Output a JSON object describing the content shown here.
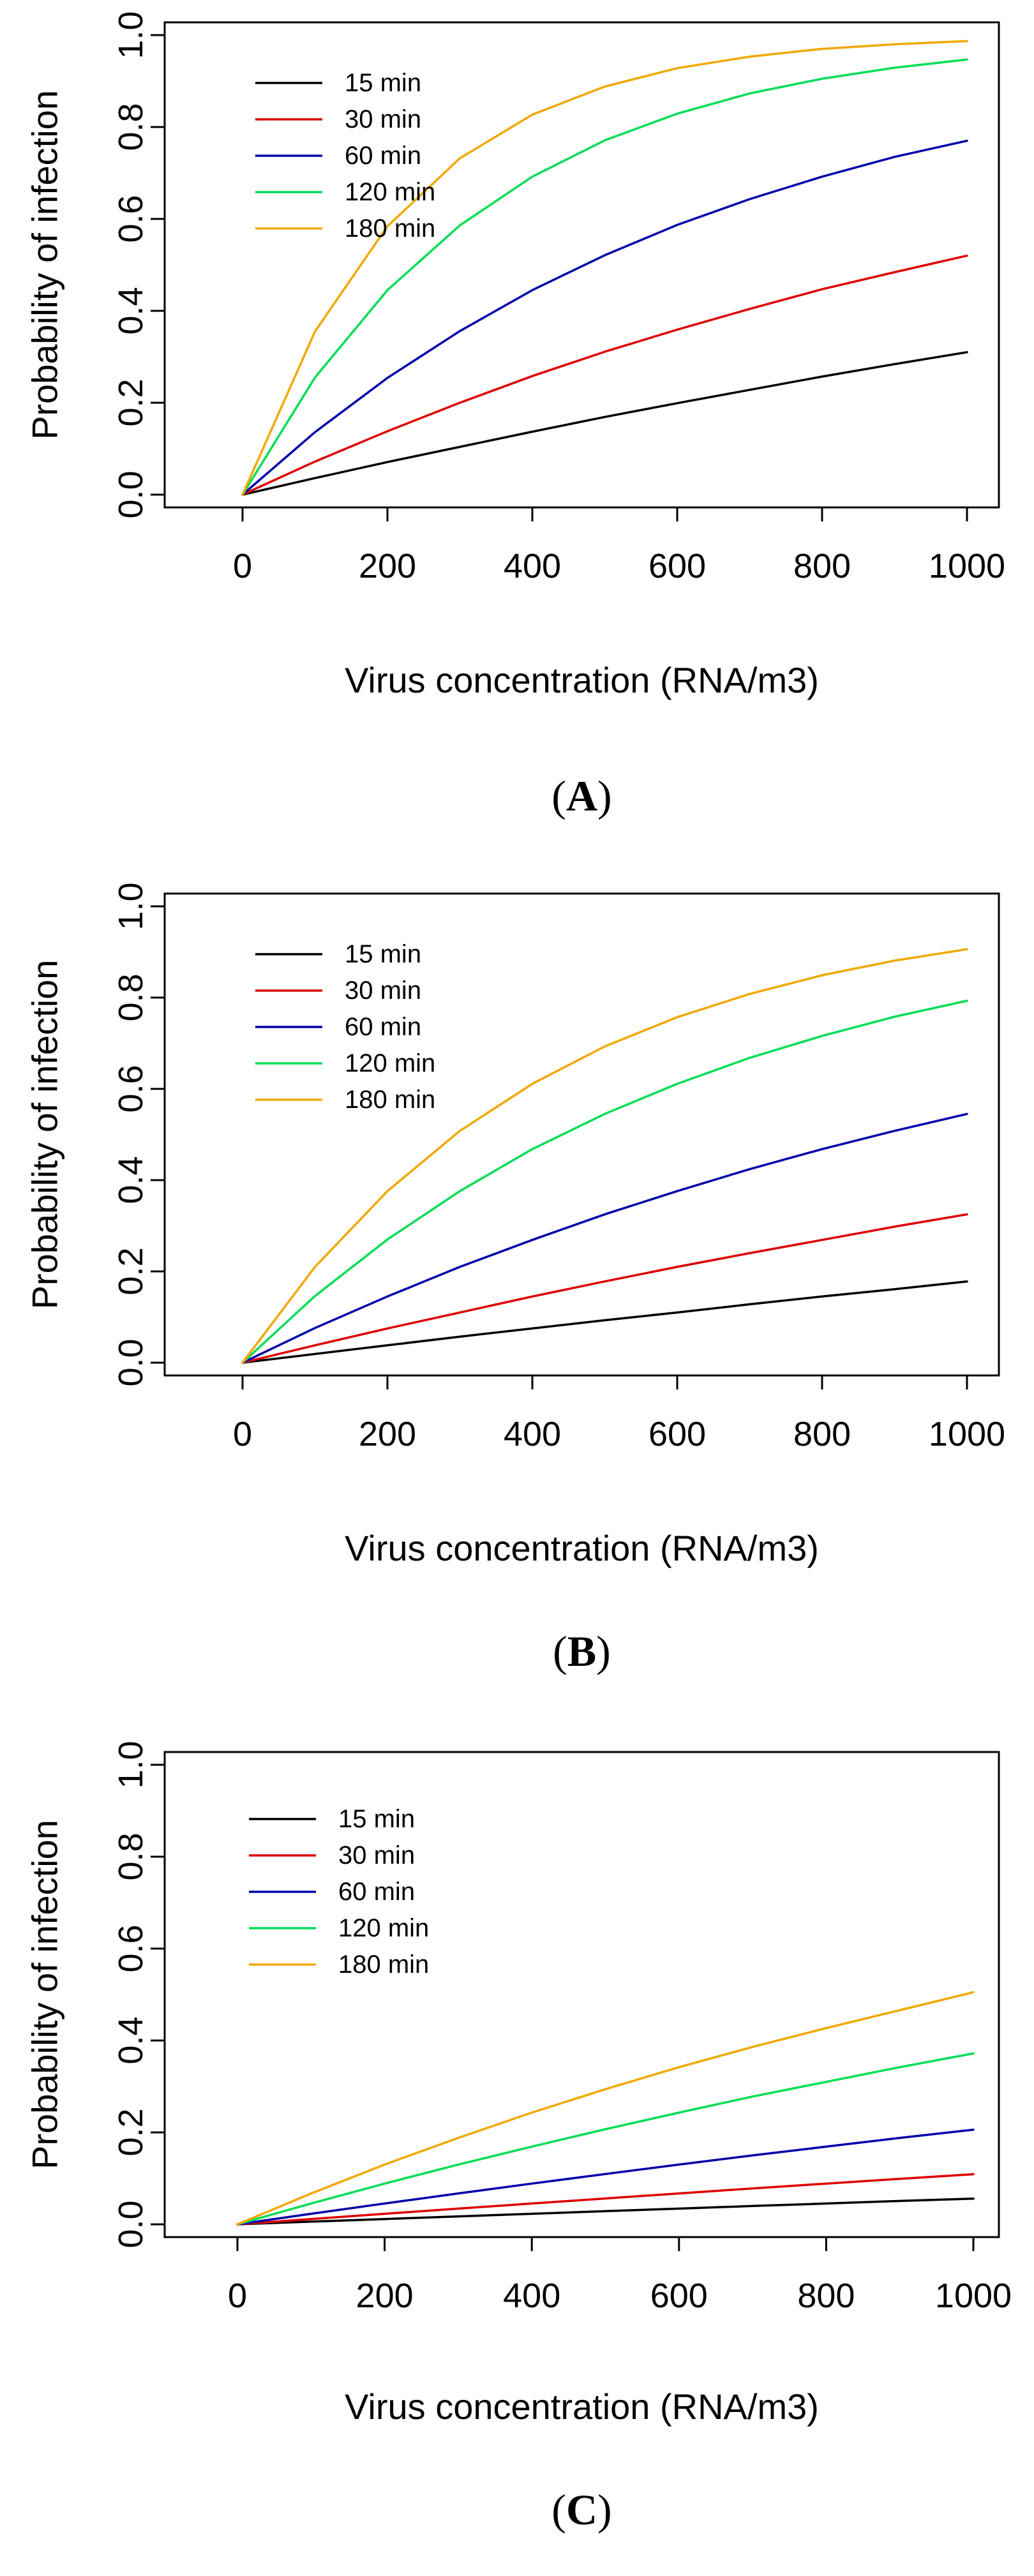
{
  "colors": {
    "15 min": "#000000",
    "30 min": "#dd0000",
    "60 min": "#0000aa",
    "120 min": "#00dd55",
    "180 min": "#f0a800"
  },
  "chart_data": [
    {
      "type": "line",
      "panel_label": "(A)",
      "panel_letter": "A",
      "xlabel": "Virus concentration (RNA/m3)",
      "ylabel": "Probability of infection",
      "xlim": [
        0,
        1000
      ],
      "ylim": [
        0,
        1
      ],
      "x_ticks": [
        0,
        200,
        400,
        600,
        800,
        1000
      ],
      "y_ticks": [
        0.0,
        0.2,
        0.4,
        0.6,
        0.8,
        1.0
      ],
      "y_tick_labels": [
        "0.0",
        "0.2",
        "0.4",
        "0.6",
        "0.8",
        "1.0"
      ],
      "legend_position": "top-left",
      "x": [
        0,
        100,
        200,
        300,
        400,
        500,
        600,
        700,
        800,
        900,
        1000
      ],
      "series": [
        {
          "name": "15 min",
          "values": [
            0,
            0.036,
            0.071,
            0.104,
            0.137,
            0.169,
            0.199,
            0.228,
            0.257,
            0.284,
            0.31
          ]
        },
        {
          "name": "30 min",
          "values": [
            0,
            0.072,
            0.138,
            0.2,
            0.258,
            0.311,
            0.359,
            0.404,
            0.447,
            0.484,
            0.52
          ]
        },
        {
          "name": "60 min",
          "values": [
            0,
            0.136,
            0.254,
            0.356,
            0.445,
            0.521,
            0.587,
            0.643,
            0.692,
            0.735,
            0.77
          ]
        },
        {
          "name": "120 min",
          "values": [
            0,
            0.255,
            0.445,
            0.586,
            0.692,
            0.771,
            0.829,
            0.873,
            0.905,
            0.929,
            0.947
          ]
        },
        {
          "name": "180 min",
          "values": [
            0,
            0.355,
            0.584,
            0.732,
            0.827,
            0.888,
            0.928,
            0.953,
            0.97,
            0.98,
            0.987
          ]
        }
      ]
    },
    {
      "type": "line",
      "panel_label": "(B)",
      "panel_letter": "B",
      "xlabel": "Virus concentration (RNA/m3)",
      "ylabel": "Probability of infection",
      "xlim": [
        0,
        1000
      ],
      "ylim": [
        0,
        1
      ],
      "x_ticks": [
        0,
        200,
        400,
        600,
        800,
        1000
      ],
      "y_ticks": [
        0.0,
        0.2,
        0.4,
        0.6,
        0.8,
        1.0
      ],
      "y_tick_labels": [
        "0.0",
        "0.2",
        "0.4",
        "0.6",
        "0.8",
        "1.0"
      ],
      "legend_position": "top-left",
      "x": [
        0,
        100,
        200,
        300,
        400,
        500,
        600,
        700,
        800,
        900,
        1000
      ],
      "series": [
        {
          "name": "15 min",
          "values": [
            0,
            0.019,
            0.038,
            0.057,
            0.075,
            0.093,
            0.11,
            0.128,
            0.145,
            0.161,
            0.178
          ]
        },
        {
          "name": "30 min",
          "values": [
            0,
            0.038,
            0.075,
            0.11,
            0.145,
            0.178,
            0.21,
            0.24,
            0.269,
            0.298,
            0.325
          ]
        },
        {
          "name": "60 min",
          "values": [
            0,
            0.076,
            0.145,
            0.21,
            0.269,
            0.325,
            0.376,
            0.424,
            0.468,
            0.508,
            0.545
          ]
        },
        {
          "name": "120 min",
          "values": [
            0,
            0.146,
            0.27,
            0.376,
            0.468,
            0.545,
            0.611,
            0.668,
            0.716,
            0.758,
            0.793
          ]
        },
        {
          "name": "180 min",
          "values": [
            0,
            0.21,
            0.376,
            0.508,
            0.611,
            0.693,
            0.757,
            0.808,
            0.849,
            0.881,
            0.906
          ]
        }
      ]
    },
    {
      "type": "line",
      "panel_label": "(C)",
      "panel_letter": "C",
      "xlabel": "Virus concentration (RNA/m3)",
      "ylabel": "Probability of infection",
      "xlim": [
        0,
        1000
      ],
      "ylim": [
        0,
        1
      ],
      "x_ticks": [
        0,
        200,
        400,
        600,
        800,
        1000
      ],
      "y_ticks": [
        0.0,
        0.2,
        0.4,
        0.6,
        0.8,
        1.0
      ],
      "y_tick_labels": [
        "0.0",
        "0.2",
        "0.4",
        "0.6",
        "0.8",
        "1.0"
      ],
      "legend_position": "top-left",
      "x": [
        0,
        100,
        200,
        300,
        400,
        500,
        600,
        700,
        800,
        900,
        1000
      ],
      "series": [
        {
          "name": "15 min",
          "values": [
            0,
            0.0058,
            0.0115,
            0.0172,
            0.0229,
            0.0286,
            0.0342,
            0.0398,
            0.0453,
            0.0508,
            0.056
          ]
        },
        {
          "name": "30 min",
          "values": [
            0,
            0.0115,
            0.0229,
            0.0342,
            0.0453,
            0.0563,
            0.0672,
            0.078,
            0.0886,
            0.099,
            0.109
          ]
        },
        {
          "name": "60 min",
          "values": [
            0,
            0.0229,
            0.0453,
            0.0672,
            0.0886,
            0.1095,
            0.13,
            0.15,
            0.169,
            0.188,
            0.206
          ]
        },
        {
          "name": "120 min",
          "values": [
            0,
            0.0453,
            0.0886,
            0.13,
            0.169,
            0.207,
            0.243,
            0.278,
            0.31,
            0.342,
            0.372
          ]
        },
        {
          "name": "180 min",
          "values": [
            0,
            0.067,
            0.13,
            0.188,
            0.243,
            0.294,
            0.342,
            0.386,
            0.427,
            0.466,
            0.505
          ]
        }
      ]
    }
  ]
}
